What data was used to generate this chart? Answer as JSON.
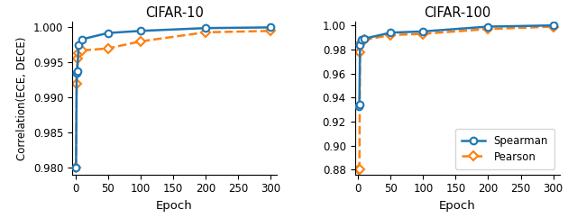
{
  "cifar10": {
    "title": "CIFAR-10",
    "spearman_x": [
      1,
      2,
      3,
      5,
      10,
      50,
      100,
      200,
      300
    ],
    "spearman_y": [
      0.98,
      0.9935,
      0.9938,
      0.9975,
      0.9983,
      0.9992,
      0.9995,
      0.9999,
      1.0
    ],
    "pearson_x": [
      1,
      2,
      3,
      5,
      10,
      50,
      100,
      200,
      300
    ],
    "pearson_y": [
      0.98,
      0.992,
      0.9956,
      0.9963,
      0.9967,
      0.997,
      0.998,
      0.9993,
      0.9995
    ],
    "ylim": [
      0.979,
      1.0008
    ],
    "yticks": [
      0.98,
      0.985,
      0.99,
      0.995,
      1.0
    ]
  },
  "cifar100": {
    "title": "CIFAR-100",
    "spearman_x": [
      1,
      2,
      3,
      5,
      10,
      50,
      100,
      200,
      300
    ],
    "spearman_y": [
      0.933,
      0.934,
      0.984,
      0.988,
      0.989,
      0.994,
      0.995,
      0.999,
      1.0
    ],
    "pearson_x": [
      1,
      2,
      3,
      5,
      10,
      50,
      100,
      200,
      300
    ],
    "pearson_y": [
      0.88,
      0.88,
      0.978,
      0.986,
      0.988,
      0.992,
      0.993,
      0.997,
      0.999
    ],
    "ylim": [
      0.876,
      1.003
    ],
    "yticks": [
      0.88,
      0.9,
      0.92,
      0.94,
      0.96,
      0.98,
      1.0
    ]
  },
  "spearman_color": "#1f77b4",
  "pearson_color": "#ff7f0e",
  "spearman_label": "Spearman",
  "pearson_label": "Pearson",
  "xlabel": "Epoch",
  "ylabel": "Correlation(ECE, DECE)",
  "xticks": [
    0,
    50,
    100,
    150,
    200,
    250,
    300
  ],
  "xlim": [
    0,
    310
  ]
}
